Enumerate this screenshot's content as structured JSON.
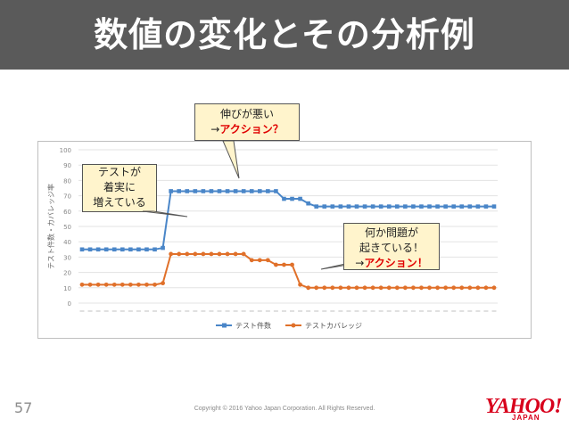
{
  "slide": {
    "title": "数値の変化とその分析例",
    "number": "57",
    "copyright": "Copyright © 2016 Yahoo Japan Corporation. All Rights Reserved.",
    "logo_text": "YAHOO!",
    "logo_sub": "JAPAN"
  },
  "callouts": {
    "steady": {
      "lines": [
        "テストが",
        "着実に",
        "増えている"
      ]
    },
    "slow": {
      "line1": "伸びが悪い",
      "line2_prefix": "→",
      "line2_action": "アクション？"
    },
    "problem": {
      "line1": "何か問題が",
      "line2": "起きている！",
      "line3_prefix": "→",
      "line3_action": "アクション！"
    }
  },
  "colors": {
    "tests": "#4a86c8",
    "coverage": "#e0702a",
    "title_bg": "#5a5a5a",
    "callout_bg": "#fff4cc",
    "action_red": "#e00000",
    "logo_red": "#d8001c"
  },
  "chart_data": {
    "type": "line",
    "ylabel": "テスト件数・カバレッジ率",
    "ylim": [
      0,
      100
    ],
    "yticks": [
      "0",
      "10",
      "20",
      "30",
      "40",
      "50",
      "60",
      "70",
      "80",
      "90",
      "100"
    ],
    "legend_position": "bottom",
    "grid": true,
    "series": [
      {
        "name": "テスト件数",
        "values": [
          35,
          35,
          35,
          35,
          35,
          35,
          35,
          35,
          35,
          35,
          36,
          73,
          73,
          73,
          73,
          73,
          73,
          73,
          73,
          73,
          73,
          73,
          73,
          73,
          73,
          68,
          68,
          68,
          65,
          63,
          63,
          63,
          63,
          63,
          63,
          63,
          63,
          63,
          63,
          63,
          63,
          63,
          63,
          63,
          63,
          63,
          63,
          63,
          63,
          63,
          63,
          63
        ]
      },
      {
        "name": "テストカバレッジ",
        "values": [
          12,
          12,
          12,
          12,
          12,
          12,
          12,
          12,
          12,
          12,
          13,
          32,
          32,
          32,
          32,
          32,
          32,
          32,
          32,
          32,
          32,
          28,
          28,
          28,
          25,
          25,
          25,
          12,
          10,
          10,
          10,
          10,
          10,
          10,
          10,
          10,
          10,
          10,
          10,
          10,
          10,
          10,
          10,
          10,
          10,
          10,
          10,
          10,
          10,
          10,
          10,
          10
        ]
      }
    ]
  }
}
